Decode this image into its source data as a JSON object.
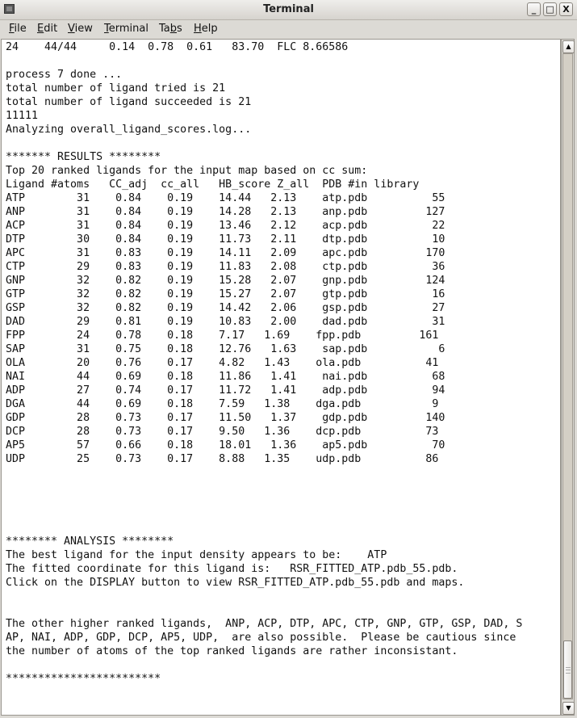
{
  "window": {
    "title": "Terminal",
    "icon": "terminal-app-icon",
    "controls": {
      "minimize": "_",
      "maximize": "□",
      "close": "X"
    }
  },
  "menubar": {
    "items": [
      {
        "label": "File",
        "mnemonic": "F"
      },
      {
        "label": "Edit",
        "mnemonic": "E"
      },
      {
        "label": "View",
        "mnemonic": "V"
      },
      {
        "label": "Terminal",
        "mnemonic": "T"
      },
      {
        "label": "Tabs",
        "mnemonic": "b"
      },
      {
        "label": "Help",
        "mnemonic": "H"
      }
    ]
  },
  "terminal": {
    "lines": [
      "24    44/44     0.14  0.78  0.61   83.70  FLC 8.66586",
      "",
      "process 7 done ...",
      "total number of ligand tried is 21",
      "total number of ligand succeeded is 21",
      "11111",
      "Analyzing overall_ligand_scores.log...",
      "",
      "******* RESULTS ********",
      "Top 20 ranked ligands for the input map based on cc sum:",
      "Ligand #atoms   CC_adj  cc_all   HB_score Z_all  PDB #in library",
      "ATP        31    0.84    0.19    14.44   2.13    atp.pdb          55",
      "ANP        31    0.84    0.19    14.28   2.13    anp.pdb         127",
      "ACP        31    0.84    0.19    13.46   2.12    acp.pdb          22",
      "DTP        30    0.84    0.19    11.73   2.11    dtp.pdb          10",
      "APC        31    0.83    0.19    14.11   2.09    apc.pdb         170",
      "CTP        29    0.83    0.19    11.83   2.08    ctp.pdb          36",
      "GNP        32    0.82    0.19    15.28   2.07    gnp.pdb         124",
      "GTP        32    0.82    0.19    15.27   2.07    gtp.pdb          16",
      "GSP        32    0.82    0.19    14.42   2.06    gsp.pdb          27",
      "DAD        29    0.81    0.19    10.83   2.00    dad.pdb          31",
      "FPP        24    0.78    0.18    7.17   1.69    fpp.pdb         161",
      "SAP        31    0.75    0.18    12.76   1.63    sap.pdb           6",
      "OLA        20    0.76    0.17    4.82   1.43    ola.pdb          41",
      "NAI        44    0.69    0.18    11.86   1.41    nai.pdb          68",
      "ADP        27    0.74    0.17    11.72   1.41    adp.pdb          94",
      "DGA        44    0.69    0.18    7.59   1.38    dga.pdb           9",
      "GDP        28    0.73    0.17    11.50   1.37    gdp.pdb         140",
      "DCP        28    0.73    0.17    9.50   1.36    dcp.pdb          73",
      "AP5        57    0.66    0.18    18.01   1.36    ap5.pdb          70",
      "UDP        25    0.73    0.17    8.88   1.35    udp.pdb          86",
      "",
      "",
      "",
      "",
      "",
      "******** ANALYSIS ********",
      "The best ligand for the input density appears to be:    ATP",
      "The fitted coordinate for this ligand is:   RSR_FITTED_ATP.pdb_55.pdb.",
      "Click on the DISPLAY button to view RSR_FITTED_ATP.pdb_55.pdb and maps.",
      "",
      "",
      "The other higher ranked ligands,  ANP, ACP, DTP, APC, CTP, GNP, GTP, GSP, DAD, S",
      "AP, NAI, ADP, GDP, DCP, AP5, UDP,  are also possible.  Please be cautious since",
      "the number of atoms of the top ranked ligands are rather inconsistant.",
      "",
      "************************",
      "",
      ""
    ]
  },
  "scrollbar": {
    "position_fraction": 1.0,
    "visible_fraction": 0.09,
    "up_arrow": "▲",
    "down_arrow": "▼"
  }
}
